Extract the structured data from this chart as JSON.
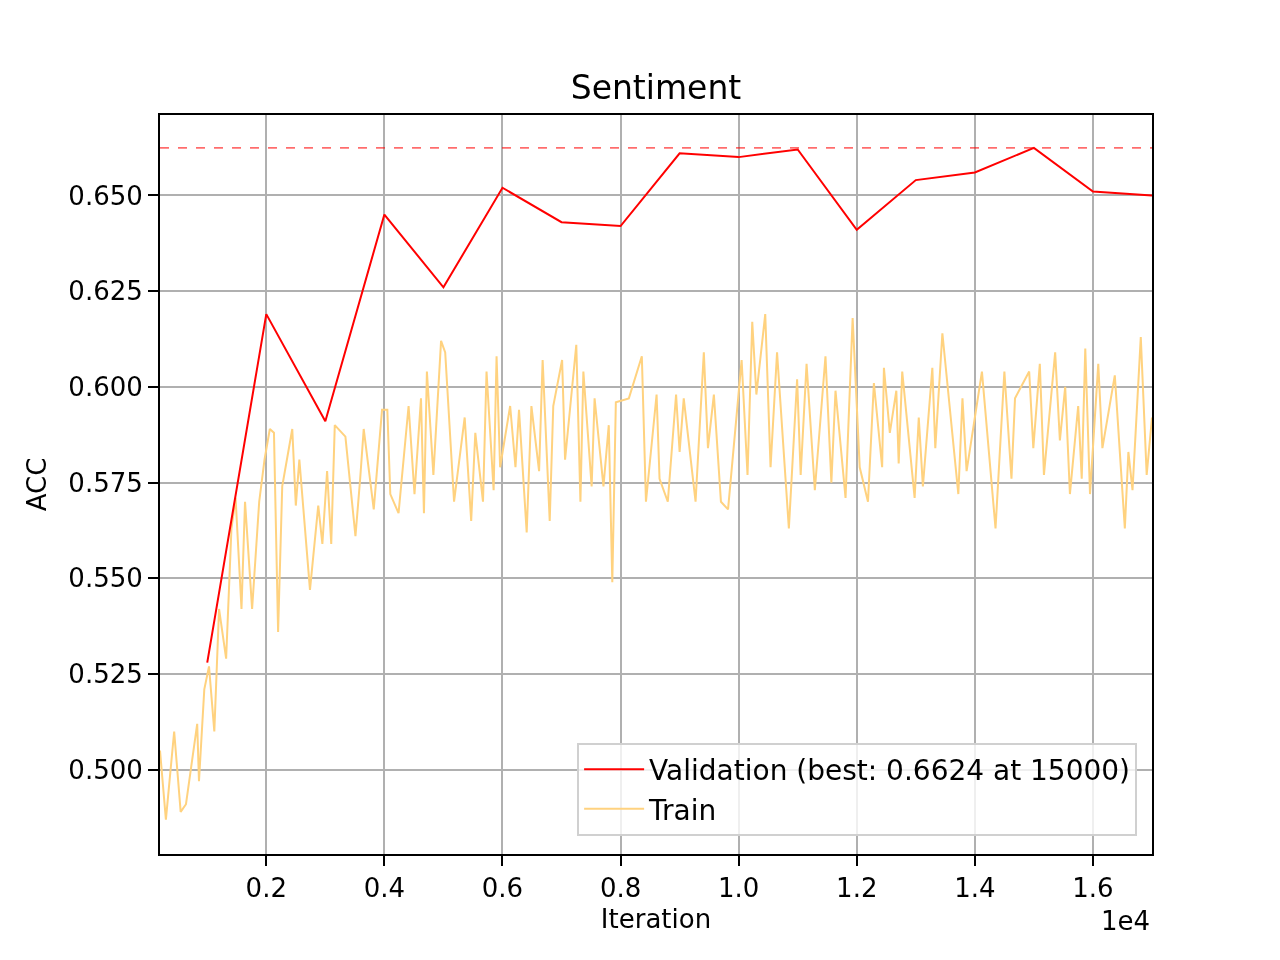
{
  "chart_data": {
    "type": "line",
    "title": "Sentiment",
    "xlabel": "Iteration",
    "ylabel": "ACC",
    "annotations": [
      "1e4"
    ],
    "xlim": [
      0.02,
      1.7
    ],
    "xticks": [
      0.2,
      0.4,
      0.6,
      0.8,
      {
        "value": 1,
        "label": "1.0"
      },
      1.2,
      1.4,
      1.6
    ],
    "ylim": [
      0.478,
      0.671
    ],
    "yticks": [
      {
        "value": 0.5,
        "label": "0.500"
      },
      {
        "value": 0.525,
        "label": "0.525"
      },
      {
        "value": 0.55,
        "label": "0.550"
      },
      {
        "value": 0.575,
        "label": "0.575"
      },
      {
        "value": 0.6,
        "label": "0.600"
      },
      {
        "value": 0.625,
        "label": "0.625"
      },
      {
        "value": 0.65,
        "label": "0.650"
      }
    ],
    "grid": true,
    "legend": "bottom right",
    "line_style": "solid",
    "ref_lines": [
      {
        "axis": "y",
        "value": 0.6624,
        "color": "#ff0000",
        "line_style": "dashed"
      }
    ],
    "series": [
      {
        "name": "Validation (best: 0.6624 at 15000)",
        "color": "#ff0000",
        "x": [
          0.1,
          0.2,
          0.3,
          0.4,
          0.5,
          0.6,
          0.7,
          0.8,
          0.9,
          1.0,
          1.1,
          1.2,
          1.3,
          1.4,
          1.5,
          1.6,
          1.7
        ],
        "values": [
          0.528,
          0.619,
          0.591,
          0.645,
          0.626,
          0.652,
          0.643,
          0.642,
          0.661,
          0.66,
          0.662,
          0.641,
          0.654,
          0.656,
          0.6624,
          0.651,
          0.65
        ]
      },
      {
        "name": "Train",
        "color": "#ffd27f",
        "x": [
          0.02,
          0.03,
          0.044,
          0.055,
          0.064,
          0.083,
          0.086,
          0.095,
          0.103,
          0.112,
          0.12,
          0.132,
          0.141,
          0.148,
          0.158,
          0.164,
          0.176,
          0.188,
          0.197,
          0.206,
          0.213,
          0.22,
          0.227,
          0.244,
          0.25,
          0.256,
          0.274,
          0.288,
          0.295,
          0.303,
          0.31,
          0.316,
          0.334,
          0.351,
          0.359,
          0.365,
          0.382,
          0.396,
          0.405,
          0.41,
          0.424,
          0.441,
          0.451,
          0.462,
          0.467,
          0.472,
          0.483,
          0.496,
          0.503,
          0.518,
          0.536,
          0.547,
          0.554,
          0.567,
          0.573,
          0.585,
          0.59,
          0.596,
          0.613,
          0.622,
          0.628,
          0.641,
          0.649,
          0.662,
          0.668,
          0.68,
          0.686,
          0.701,
          0.706,
          0.725,
          0.732,
          0.737,
          0.751,
          0.756,
          0.771,
          0.78,
          0.786,
          0.792,
          0.814,
          0.836,
          0.843,
          0.861,
          0.866,
          0.88,
          0.894,
          0.9,
          0.907,
          0.927,
          0.941,
          0.948,
          0.958,
          0.97,
          0.982,
          1.005,
          1.015,
          1.023,
          1.03,
          1.045,
          1.054,
          1.065,
          1.085,
          1.099,
          1.105,
          1.115,
          1.129,
          1.147,
          1.157,
          1.164,
          1.181,
          1.193,
          1.205,
          1.219,
          1.229,
          1.243,
          1.246,
          1.256,
          1.267,
          1.271,
          1.277,
          1.298,
          1.305,
          1.312,
          1.328,
          1.333,
          1.345,
          1.372,
          1.379,
          1.386,
          1.412,
          1.435,
          1.45,
          1.462,
          1.468,
          1.492,
          1.499,
          1.51,
          1.517,
          1.536,
          1.544,
          1.553,
          1.561,
          1.575,
          1.581,
          1.587,
          1.595,
          1.609,
          1.616,
          1.637,
          1.654,
          1.66,
          1.667,
          1.681,
          1.691,
          1.7
        ],
        "values": [
          0.505,
          0.487,
          0.51,
          0.489,
          0.491,
          0.512,
          0.497,
          0.521,
          0.527,
          0.51,
          0.542,
          0.529,
          0.563,
          0.571,
          0.542,
          0.57,
          0.542,
          0.57,
          0.581,
          0.589,
          0.588,
          0.536,
          0.574,
          0.589,
          0.569,
          0.581,
          0.547,
          0.569,
          0.559,
          0.578,
          0.559,
          0.59,
          0.587,
          0.561,
          0.576,
          0.589,
          0.568,
          0.594,
          0.594,
          0.572,
          0.567,
          0.595,
          0.572,
          0.597,
          0.567,
          0.604,
          0.577,
          0.612,
          0.609,
          0.57,
          0.592,
          0.565,
          0.588,
          0.57,
          0.604,
          0.573,
          0.608,
          0.579,
          0.595,
          0.579,
          0.594,
          0.562,
          0.595,
          0.578,
          0.607,
          0.565,
          0.595,
          0.607,
          0.581,
          0.611,
          0.57,
          0.604,
          0.574,
          0.597,
          0.574,
          0.59,
          0.549,
          0.596,
          0.597,
          0.608,
          0.57,
          0.598,
          0.576,
          0.57,
          0.598,
          0.583,
          0.597,
          0.57,
          0.609,
          0.584,
          0.598,
          0.57,
          0.568,
          0.607,
          0.577,
          0.617,
          0.598,
          0.619,
          0.579,
          0.609,
          0.563,
          0.602,
          0.577,
          0.606,
          0.573,
          0.608,
          0.575,
          0.599,
          0.571,
          0.618,
          0.579,
          0.57,
          0.601,
          0.579,
          0.605,
          0.588,
          0.599,
          0.58,
          0.604,
          0.571,
          0.592,
          0.574,
          0.605,
          0.584,
          0.614,
          0.572,
          0.597,
          0.578,
          0.604,
          0.563,
          0.604,
          0.576,
          0.597,
          0.604,
          0.584,
          0.606,
          0.577,
          0.609,
          0.586,
          0.6,
          0.572,
          0.595,
          0.576,
          0.61,
          0.572,
          0.606,
          0.584,
          0.603,
          0.563,
          0.583,
          0.573,
          0.613,
          0.577,
          0.592
        ]
      }
    ]
  }
}
